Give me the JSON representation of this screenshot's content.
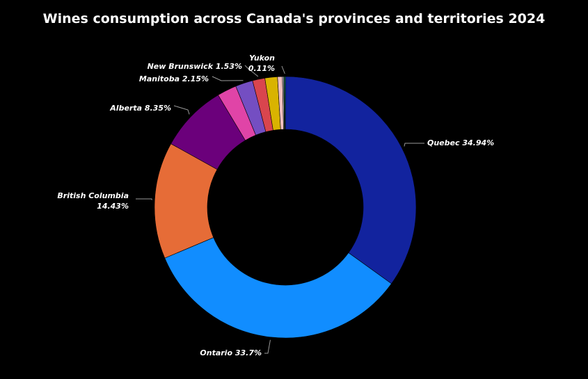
{
  "chart_data": {
    "type": "donut",
    "title": "Wines consumption across Canada's provinces and territories 2024",
    "slices": [
      {
        "name": "Quebec",
        "value": 34.94,
        "label": "Quebec 34.94%",
        "color": "#12239e"
      },
      {
        "name": "Ontario",
        "value": 33.7,
        "label": "Ontario 33.7%",
        "color": "#118dff"
      },
      {
        "name": "British Columbia",
        "value": 14.43,
        "label": "British Columbia",
        "label2": "14.43%",
        "color": "#e66c37"
      },
      {
        "name": "Alberta",
        "value": 8.35,
        "label": "Alberta 8.35%",
        "color": "#6b007b"
      },
      {
        "name": "",
        "value": 2.4,
        "color": "#e044a7"
      },
      {
        "name": "Manitoba",
        "value": 2.15,
        "label": "Manitoba 2.15%",
        "color": "#744ec2"
      },
      {
        "name": "New Brunswick",
        "value": 1.53,
        "label": "New Brunswick 1.53%",
        "color": "#d9454e"
      },
      {
        "name": "",
        "value": 1.55,
        "color": "#d9b300"
      },
      {
        "name": "",
        "value": 0.6,
        "color": "#f0c0c0"
      },
      {
        "name": "",
        "value": 0.16,
        "color": "#c8c8c8"
      },
      {
        "name": "",
        "value": 0.08,
        "color": "#3e7fd0"
      },
      {
        "name": "Yukon",
        "value": 0.11,
        "label": "Yukon",
        "label2": "0.11%",
        "color": "#1aab40"
      }
    ]
  }
}
